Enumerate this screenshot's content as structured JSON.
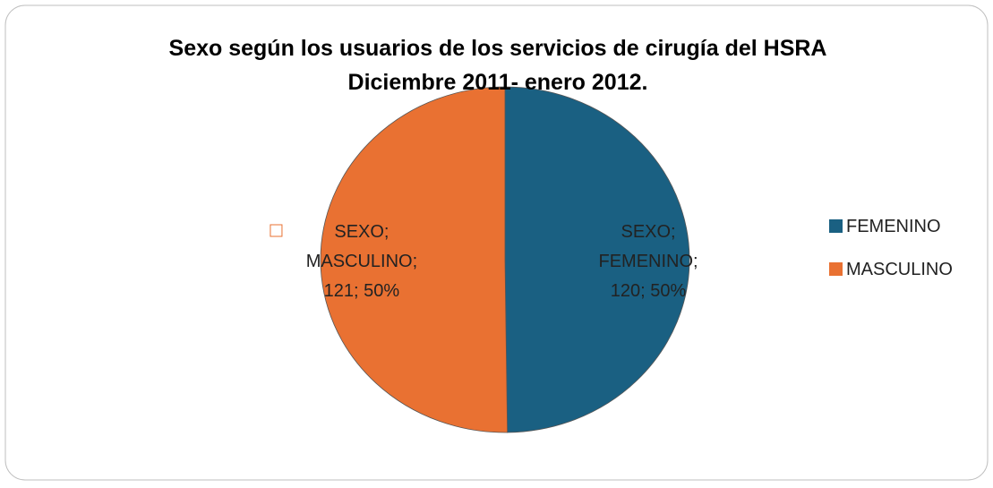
{
  "chart_data": {
    "type": "pie",
    "title": "Sexo según los usuarios de los servicios de cirugía del HSRA",
    "subtitle": "Diciembre 2011- enero 2012.",
    "categories": [
      "FEMENINO",
      "MASCULINO"
    ],
    "series": [
      {
        "name": "SEXO",
        "colors": [
          "#1a6082",
          "#e97132"
        ],
        "values": [
          120,
          121
        ]
      }
    ],
    "value_labels": [
      [
        "SEXO;",
        "FEMENINO;",
        "120; 50%"
      ],
      [
        "SEXO;",
        "MASCULINO;",
        "121; 50%"
      ]
    ],
    "legend": "right"
  }
}
